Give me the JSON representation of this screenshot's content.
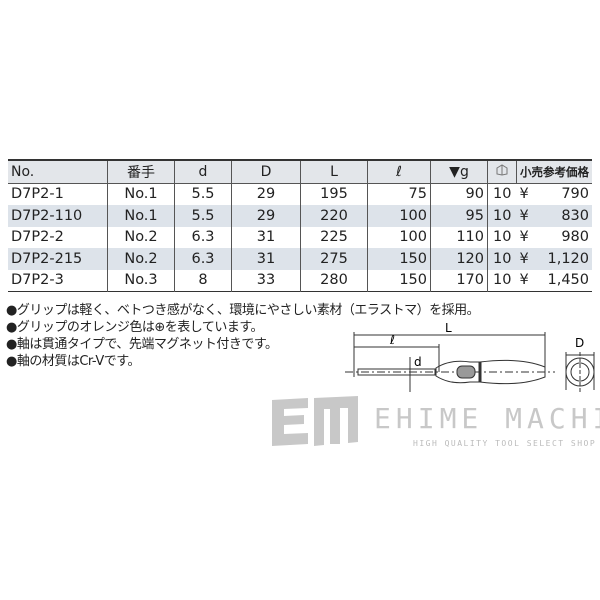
{
  "table": {
    "headers": [
      "No.",
      "番手",
      "d",
      "D",
      "L",
      "ℓ",
      "▼g",
      "",
      "小売参考価格"
    ],
    "rows": [
      [
        "D7P2-1",
        "No.1",
        "5.5",
        "29",
        "195",
        "75",
        "90",
        "10",
        "¥",
        "790"
      ],
      [
        "D7P2-110",
        "No.1",
        "5.5",
        "29",
        "220",
        "100",
        "95",
        "10",
        "¥",
        "830"
      ],
      [
        "D7P2-2",
        "No.2",
        "6.3",
        "31",
        "225",
        "100",
        "110",
        "10",
        "¥",
        "980"
      ],
      [
        "D7P2-215",
        "No.2",
        "6.3",
        "31",
        "275",
        "150",
        "120",
        "10",
        "¥",
        "1,120"
      ],
      [
        "D7P2-3",
        "No.3",
        "8",
        "33",
        "280",
        "150",
        "170",
        "10",
        "¥",
        "1,450"
      ]
    ],
    "pack_icon": "box-icon"
  },
  "notes": [
    "●グリップは軽く、ベトつき感がなく、環境にやさしい素材（エラストマ）を採用。",
    "●グリップのオレンジ色は⊕を表しています。",
    "●軸は貫通タイプで、先端マグネット付きです。",
    "●軸の材質はCr-Vです。"
  ],
  "diagram": {
    "L": "L",
    "l": "ℓ",
    "d": "d",
    "D": "D"
  },
  "logo": {
    "name": "EHIME MACHINE",
    "tagline": "HIGH QUALITY TOOL SELECT SHOP",
    "mark": "EM"
  }
}
